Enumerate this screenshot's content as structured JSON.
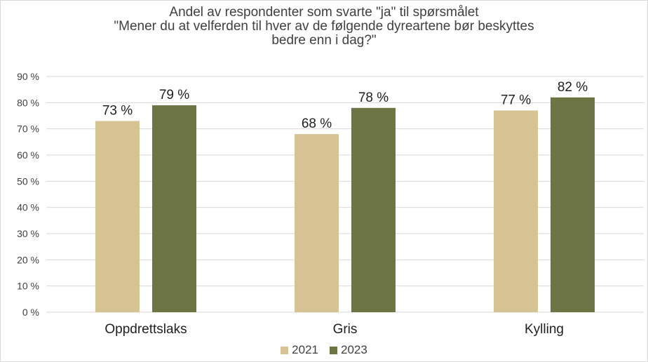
{
  "chart_data": {
    "type": "bar",
    "title_lines": [
      "Andel av respondenter som svarte \"ja\" til spørsmålet",
      "\"Mener du at velferden til hver av de følgende dyreartene bør beskyttes",
      "bedre enn i dag?\""
    ],
    "categories": [
      "Oppdrettslaks",
      "Gris",
      "Kylling"
    ],
    "series": [
      {
        "name": "2021",
        "values": [
          73,
          68,
          77
        ],
        "labels": [
          "73 %",
          "68 %",
          "77 %"
        ],
        "color": "#d5c394"
      },
      {
        "name": "2023",
        "values": [
          79,
          78,
          82
        ],
        "labels": [
          "79 %",
          "78 %",
          "82 %"
        ],
        "color": "#6c7543"
      }
    ],
    "ylim": [
      0,
      90
    ],
    "yticks": [
      0,
      10,
      20,
      30,
      40,
      50,
      60,
      70,
      80,
      90
    ],
    "ytick_labels": [
      "0 %",
      "10 %",
      "20 %",
      "30 %",
      "40 %",
      "50 %",
      "60 %",
      "70 %",
      "80 %",
      "90 %"
    ],
    "grid": true,
    "gridline_color": "#d9d9d9",
    "legend_position": "bottom"
  }
}
